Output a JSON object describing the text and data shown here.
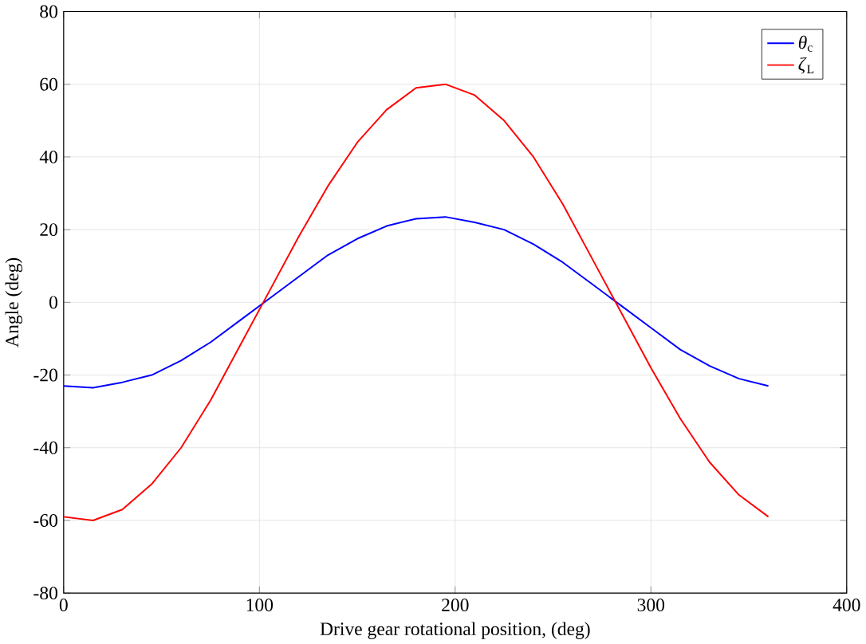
{
  "chart_data": {
    "type": "line",
    "xlabel": "Drive gear rotational position, (deg)",
    "ylabel": "Angle (deg)",
    "xlim": [
      0,
      400
    ],
    "ylim": [
      -80,
      80
    ],
    "xticks": [
      0,
      100,
      200,
      300,
      400
    ],
    "yticks": [
      -80,
      -60,
      -40,
      -20,
      0,
      20,
      40,
      60,
      80
    ],
    "grid": true,
    "legend": "top right",
    "x": [
      0,
      15,
      30,
      45,
      60,
      75,
      90,
      105,
      120,
      135,
      150,
      165,
      180,
      195,
      210,
      225,
      240,
      255,
      270,
      285,
      300,
      315,
      330,
      345,
      360
    ],
    "series": [
      {
        "name": "*θ*$_{c}$",
        "color": "#0000ff",
        "values": [
          -23,
          -23.5,
          -22,
          -20,
          -16,
          -11,
          -5,
          1,
          7,
          13,
          17.5,
          21,
          23,
          23.5,
          22,
          20,
          16,
          11,
          5,
          -1,
          -7,
          -13,
          -17.5,
          -21,
          -23
        ]
      },
      {
        "name": "*ζ*$_{L}$",
        "color": "#ff0000",
        "values": [
          -59,
          -60,
          -57,
          -50,
          -40,
          -27,
          -12,
          3,
          18,
          32,
          44,
          53,
          59,
          60,
          57,
          50,
          40,
          27,
          12,
          -3,
          -18,
          -32,
          -44,
          -53,
          -59
        ]
      }
    ]
  }
}
